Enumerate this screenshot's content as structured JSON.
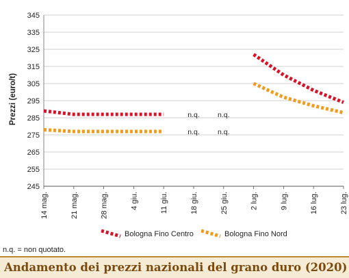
{
  "chart_data": {
    "type": "line",
    "title": "Andamento dei prezzi nazionali del grano duro (2020)",
    "ylabel": "Prezzi (euro/t)",
    "xlabel": "",
    "ylim": [
      245,
      345
    ],
    "yticks": [
      245,
      255,
      265,
      275,
      285,
      295,
      305,
      315,
      325,
      335,
      345
    ],
    "categories": [
      "14 mag.",
      "21 mag.",
      "28 mag.",
      "4 giu.",
      "11 giu.",
      "18 giu.",
      "25 giu.",
      "2 lug.",
      "9 lug.",
      "16 lug.",
      "23 lug."
    ],
    "grid": "horizontal",
    "legend_position": "bottom",
    "series": [
      {
        "name": "Bologna Fino Centro",
        "color": "#d7132a",
        "values": [
          289,
          287,
          287,
          287,
          287,
          null,
          null,
          322,
          310,
          301,
          294
        ]
      },
      {
        "name": "Bologna Fino Nord",
        "color": "#f29a1b",
        "values": [
          278,
          277,
          277,
          277,
          277,
          null,
          null,
          305,
          297,
          292,
          288
        ]
      }
    ],
    "annotations": [
      {
        "text": "n.q.",
        "category": "18 giu.",
        "value": 287
      },
      {
        "text": "n.q.",
        "category": "25 giu.",
        "value": 287
      },
      {
        "text": "n.q.",
        "category": "18 giu.",
        "value": 277
      },
      {
        "text": "n.q.",
        "category": "25 giu.",
        "value": 277
      }
    ],
    "footnote": "n.q. = non quotato."
  }
}
